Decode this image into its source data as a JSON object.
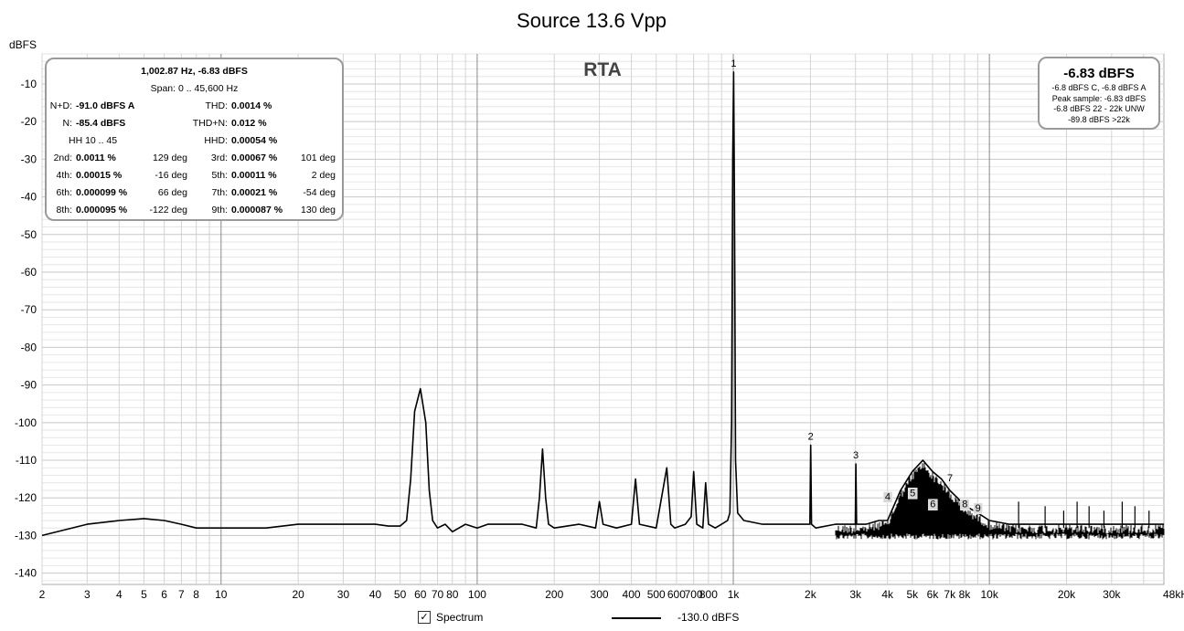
{
  "chart_data": {
    "type": "line",
    "title": "Source 13.6 Vpp",
    "ylabel": "dBFS",
    "xlabel": "",
    "x_scale": "log",
    "xlim": [
      2,
      48000
    ],
    "ylim": [
      -143,
      -2
    ],
    "grid": true,
    "x_tick_values": [
      2,
      3,
      4,
      5,
      6,
      7,
      8,
      10,
      20,
      30,
      40,
      50,
      60,
      70,
      80,
      100,
      200,
      300,
      400,
      500,
      600,
      700,
      800,
      1000,
      2000,
      3000,
      4000,
      5000,
      6000,
      7000,
      8000,
      10000,
      20000,
      30000,
      48000
    ],
    "x_tick_labels": [
      "2",
      "3",
      "4",
      "5",
      "6",
      "7",
      "8",
      "10",
      "20",
      "30",
      "40",
      "50",
      "60",
      "70",
      "80",
      "100",
      "200",
      "300",
      "400",
      "500",
      "600",
      "700",
      "800",
      "1k",
      "2k",
      "3k",
      "4k",
      "5k",
      "6k",
      "7k",
      "8k",
      "10k",
      "20k",
      "30k",
      "48kHz"
    ],
    "y_tick_values": [
      -10,
      -20,
      -30,
      -40,
      -50,
      -60,
      -70,
      -80,
      -90,
      -100,
      -110,
      -120,
      -130,
      -140
    ],
    "y_tick_labels": [
      "-10",
      "-20",
      "-30",
      "-40",
      "-50",
      "-60",
      "-70",
      "-80",
      "-90",
      "-100",
      "-110",
      "-120",
      "-130",
      "-140"
    ],
    "overlay_label": "RTA",
    "series": [
      {
        "name": "Spectrum",
        "color": "#000000",
        "x": [
          2,
          3,
          4,
          5,
          6,
          7,
          8,
          9,
          10,
          12,
          15,
          20,
          25,
          30,
          35,
          40,
          45,
          50,
          53,
          55,
          57,
          60,
          63,
          65,
          67,
          70,
          75,
          80,
          90,
          100,
          110,
          130,
          150,
          170,
          175,
          180,
          185,
          190,
          200,
          250,
          290,
          300,
          310,
          350,
          400,
          415,
          430,
          500,
          550,
          570,
          590,
          650,
          685,
          700,
          720,
          760,
          780,
          800,
          850,
          900,
          950,
          970,
          985,
          995,
          1002.87,
          1010,
          1020,
          1040,
          1100,
          1300,
          1600,
          1900,
          1990,
          2005,
          2020,
          2100,
          2500,
          2900,
          2995,
          3010,
          3030,
          3300,
          3700,
          4000,
          4500,
          5000,
          5500,
          6000,
          6500,
          7000,
          7500,
          8000,
          9000,
          10000,
          12000,
          15000,
          18000,
          20000,
          25000,
          30000,
          35000,
          40000,
          48000
        ],
        "y": [
          -130,
          -127,
          -126,
          -125.5,
          -126,
          -127,
          -128,
          -128,
          -128,
          -128,
          -128,
          -127,
          -127,
          -127,
          -127,
          -127,
          -127.5,
          -127.5,
          -126,
          -115,
          -97,
          -91,
          -100,
          -118,
          -126,
          -128,
          -127,
          -129,
          -127,
          -128,
          -127,
          -127,
          -127,
          -128,
          -120,
          -107,
          -120,
          -127,
          -128,
          -127,
          -128,
          -121,
          -127,
          -128,
          -127,
          -115,
          -127,
          -128,
          -112,
          -127,
          -128,
          -127,
          -125,
          -113,
          -127,
          -128,
          -116,
          -127,
          -128,
          -127,
          -126,
          -124,
          -100,
          -30,
          -6.83,
          -40,
          -110,
          -124,
          -126,
          -127,
          -127,
          -127,
          -127,
          -106,
          -127,
          -128,
          -127,
          -127,
          -127,
          -111,
          -127,
          -127,
          -126,
          -126,
          -118,
          -113,
          -110,
          -113,
          -115,
          -118,
          -120,
          -122,
          -124,
          -126,
          -127,
          -127,
          -127,
          -127,
          -127,
          -127,
          -127,
          -127,
          -127
        ]
      }
    ],
    "harmonic_markers": [
      {
        "label": "1",
        "x": 1002.87,
        "y": -6.83
      },
      {
        "label": "2",
        "x": 2005,
        "y": -106
      },
      {
        "label": "3",
        "x": 3010,
        "y": -111
      },
      {
        "label": "4",
        "x": 4010,
        "y": -122,
        "boxed": true
      },
      {
        "label": "5",
        "x": 5015,
        "y": -121,
        "boxed": true
      },
      {
        "label": "6",
        "x": 6017,
        "y": -124,
        "boxed": true
      },
      {
        "label": "7",
        "x": 7020,
        "y": -117
      },
      {
        "label": "8",
        "x": 8023,
        "y": -124,
        "boxed": true
      },
      {
        "label": "9",
        "x": 9026,
        "y": -125,
        "boxed": true
      }
    ]
  },
  "info": {
    "headline": "1,002.87 Hz, -6.83 dBFS",
    "span": "Span: 0 .. 45,600 Hz",
    "nd_label": "N+D:",
    "nd_value": "-91.0 dBFS A",
    "thd_label": "THD:",
    "thd_value": "0.0014 %",
    "n_label": "N:",
    "n_value": "-85.4 dBFS",
    "thdn_label": "THD+N:",
    "thdn_value": "0.012 %",
    "hh_range": "HH 10 .. 45",
    "hhd_label": "HHD:",
    "hhd_value": "0.00054 %",
    "harmonics": [
      {
        "label": "2nd:",
        "value": "0.0011 %",
        "phase": "129 deg"
      },
      {
        "label": "3rd:",
        "value": "0.00067 %",
        "phase": "101 deg"
      },
      {
        "label": "4th:",
        "value": "0.00015 %",
        "phase": "-16 deg"
      },
      {
        "label": "5th:",
        "value": "0.00011 %",
        "phase": "2 deg"
      },
      {
        "label": "6th:",
        "value": "0.000099 %",
        "phase": "66 deg"
      },
      {
        "label": "7th:",
        "value": "0.00021 %",
        "phase": "-54 deg"
      },
      {
        "label": "8th:",
        "value": "0.000095 %",
        "phase": "-122 deg"
      },
      {
        "label": "9th:",
        "value": "0.000087 %",
        "phase": "130 deg"
      }
    ]
  },
  "level_box": {
    "main": "-6.83 dBFS",
    "lines": [
      "-6.8 dBFS C, -6.8 dBFS A",
      "Peak sample: -6.83 dBFS",
      "-6.8 dBFS 22 - 22k UNW",
      "-89.8 dBFS >22k"
    ]
  },
  "legend": {
    "checkbox_mark": "✓",
    "spectrum_label": "Spectrum",
    "level_label": "-130.0 dBFS"
  }
}
